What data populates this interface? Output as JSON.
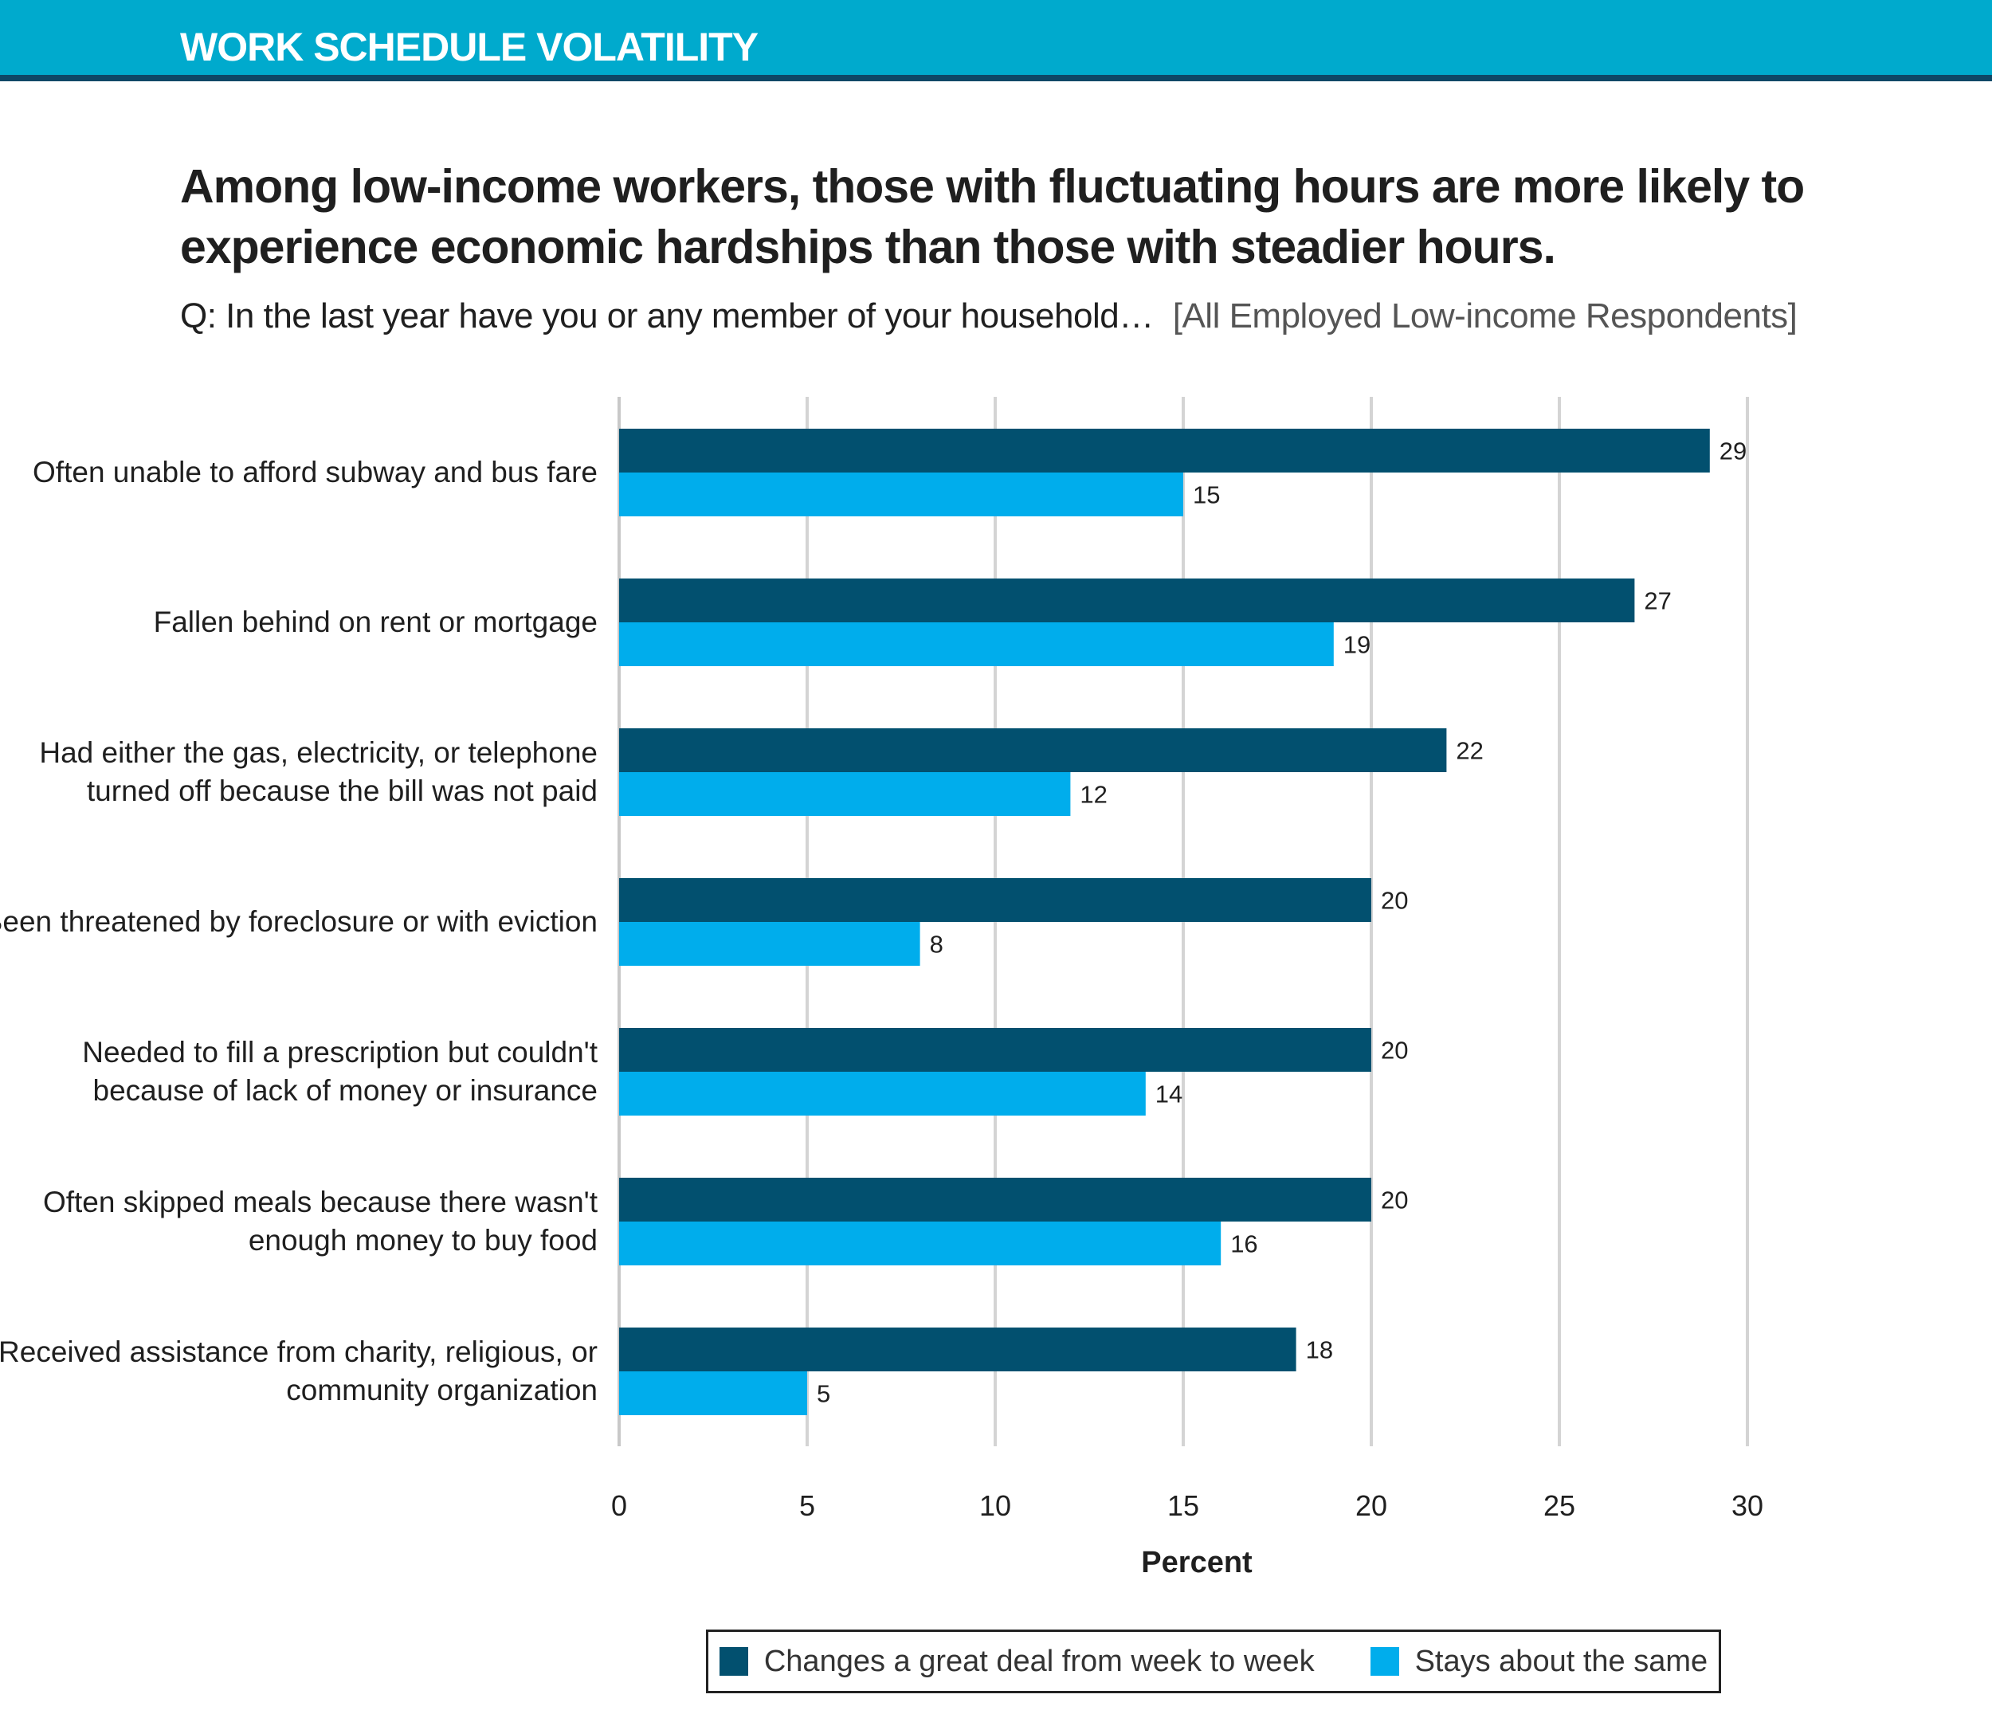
{
  "header": {
    "section_label": "WORK SCHEDULE VOLATILITY"
  },
  "colors": {
    "header_band": "#00aacd",
    "header_rule": "#0e4766",
    "series_dark": "#02506f",
    "series_light": "#00adec",
    "grid": "#d4d4d4"
  },
  "chart_data": {
    "type": "bar",
    "orientation": "horizontal",
    "title": "Among low-income workers, those with fluctuating hours are more likely to experience economic hardships than those with steadier hours.",
    "subtitle": "Q: In the last year have you or any member of your household…",
    "base_note": "[All Employed Low-income Respondents]",
    "categories": [
      [
        "Often unable to afford subway and bus fare"
      ],
      [
        "Fallen behind on rent or mortgage"
      ],
      [
        "Had either the gas, electricity, or telephone",
        "turned off because the bill was not paid"
      ],
      [
        "Been threatened by foreclosure or with eviction"
      ],
      [
        "Needed to fill a prescription but couldn't",
        "because of lack of money or insurance"
      ],
      [
        "Often skipped meals because there wasn't",
        "enough money to buy food"
      ],
      [
        "Received assistance from charity, religious, or",
        "community organization"
      ]
    ],
    "series": [
      {
        "name": "Changes a great deal from week to week",
        "color": "#02506f",
        "values": [
          29,
          27,
          22,
          20,
          20,
          20,
          18
        ]
      },
      {
        "name": "Stays about the same",
        "color": "#00adec",
        "values": [
          15,
          19,
          12,
          8,
          14,
          16,
          5
        ]
      }
    ],
    "xlabel": "Percent",
    "ylabel": "",
    "xlim": [
      0,
      30
    ],
    "xticks": [
      0,
      5,
      10,
      15,
      20,
      25,
      30
    ],
    "grid": true,
    "legend_position": "bottom-center"
  }
}
